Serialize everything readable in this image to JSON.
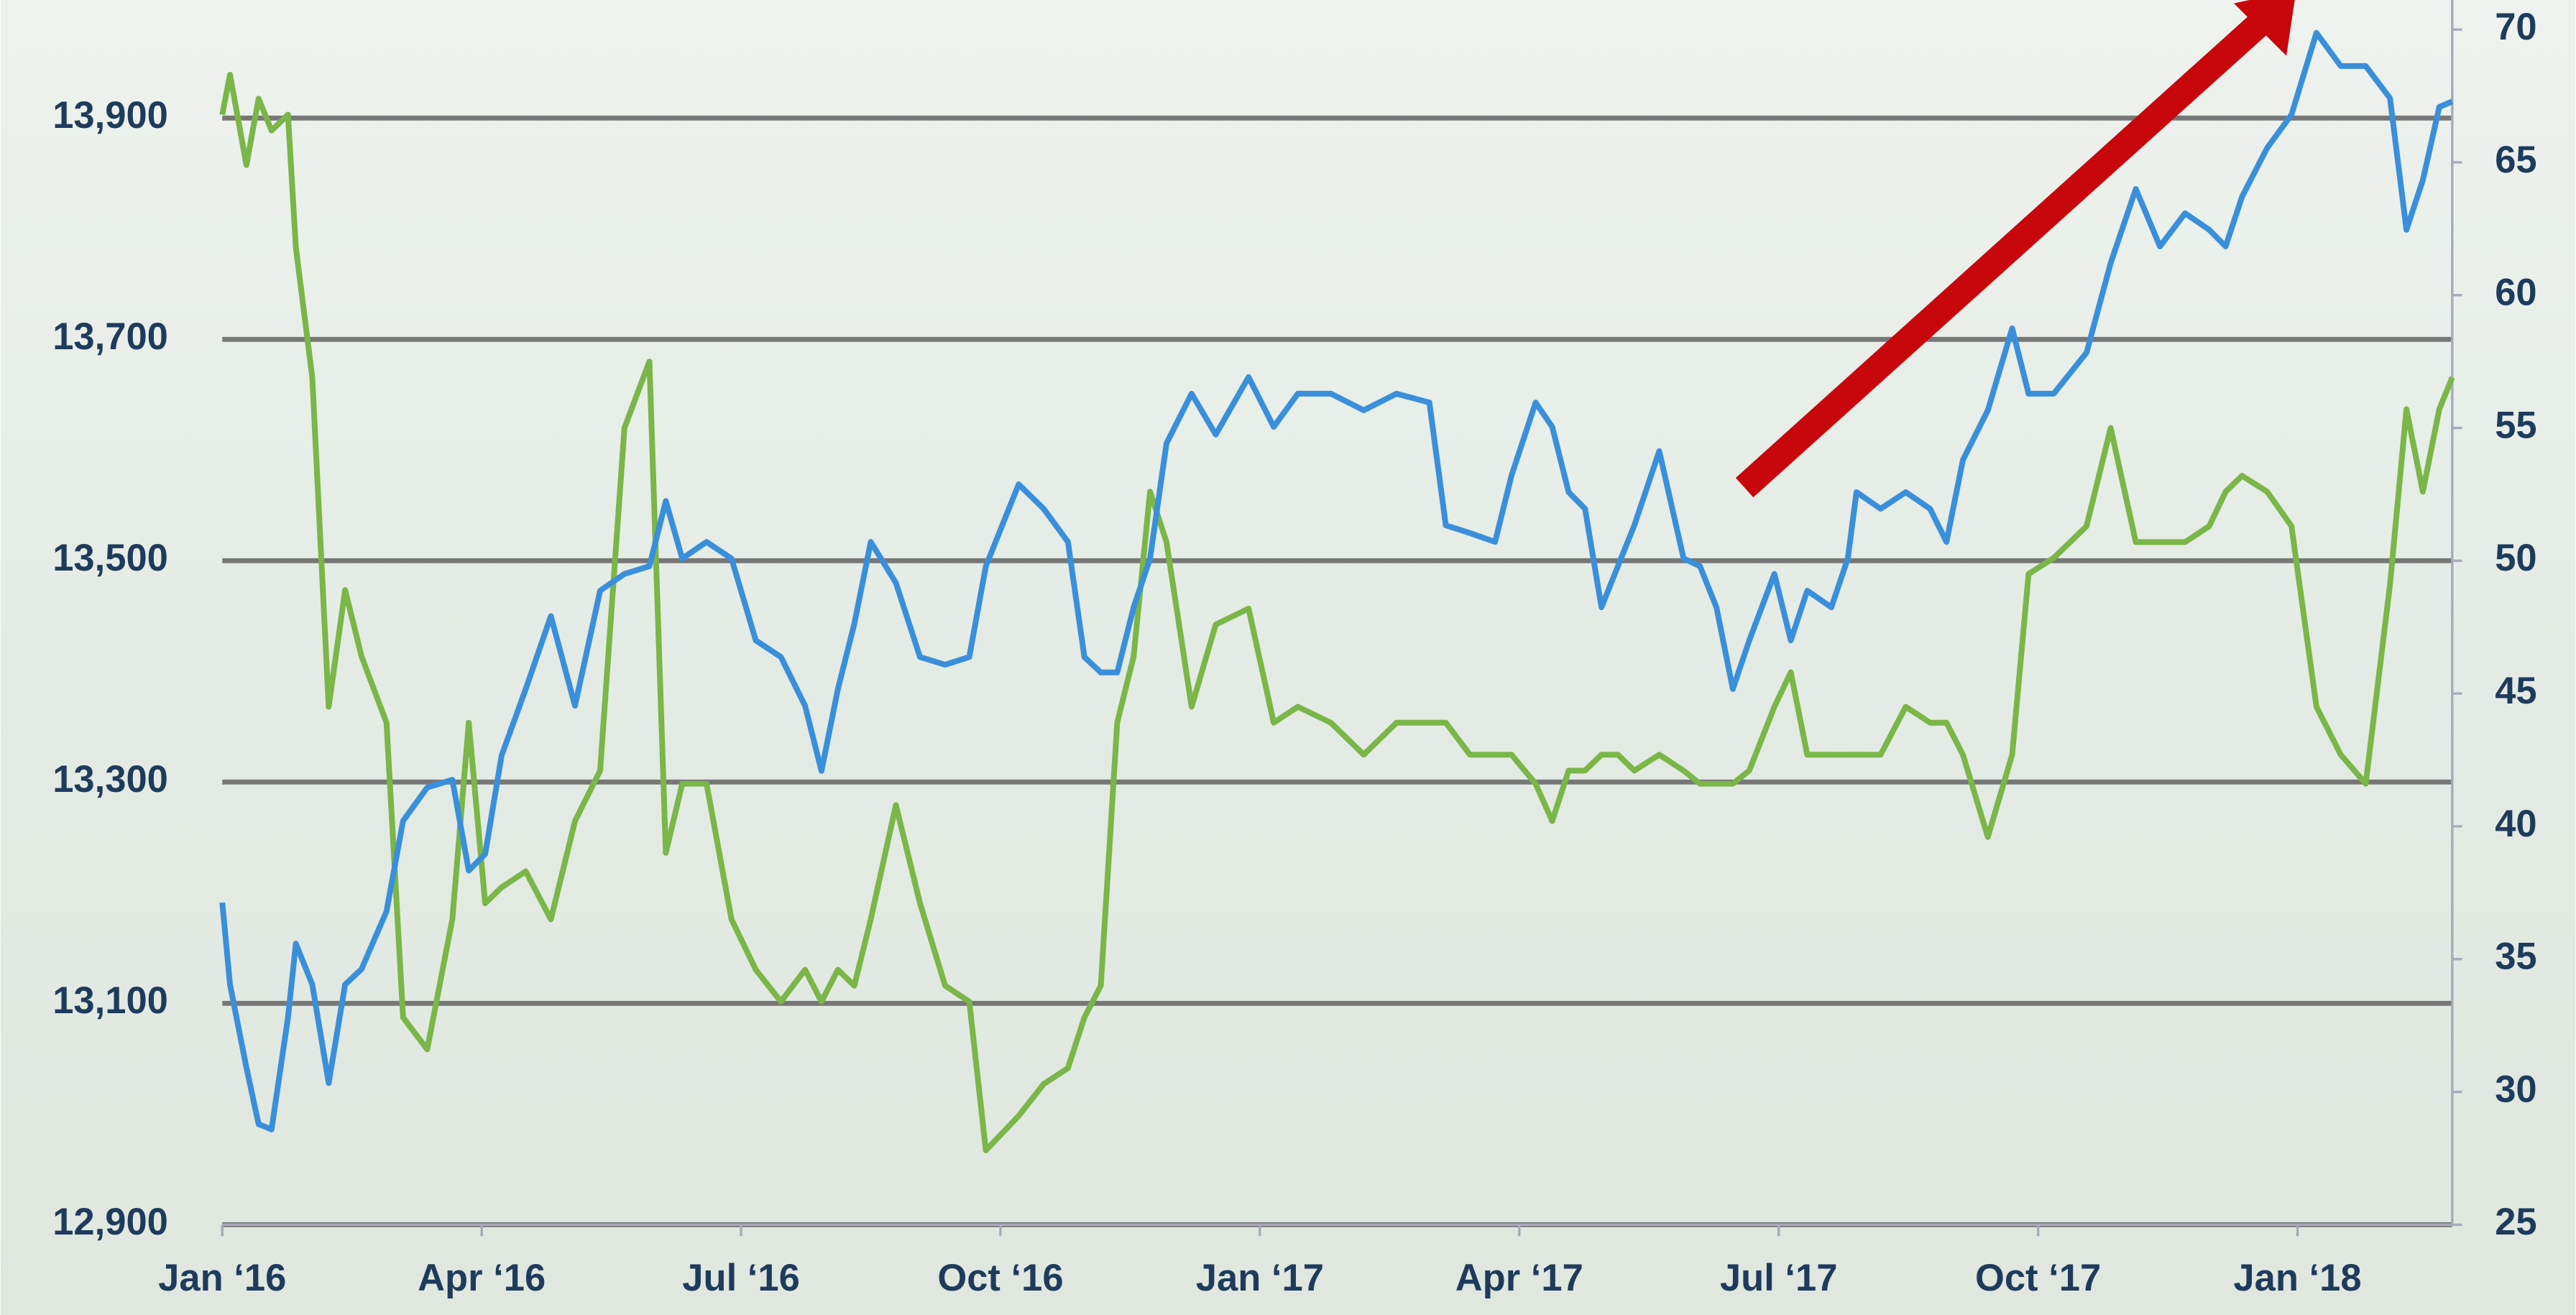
{
  "chart_data": {
    "type": "line",
    "x": [
      0,
      0.09,
      0.28,
      0.42,
      0.57,
      0.76,
      0.85,
      1.04,
      1.23,
      1.42,
      1.61,
      1.9,
      2.09,
      2.37,
      2.66,
      2.85,
      3.04,
      3.23,
      3.51,
      3.8,
      4.08,
      4.37,
      4.65,
      4.94,
      5.13,
      5.32,
      5.6,
      5.89,
      6.17,
      6.46,
      6.74,
      6.93,
      7.12,
      7.31,
      7.5,
      7.79,
      8.07,
      8.36,
      8.64,
      8.83,
      9.21,
      9.5,
      9.78,
      9.97,
      10.16,
      10.35,
      10.54,
      10.73,
      10.92,
      11.21,
      11.49,
      11.87,
      12.16,
      12.44,
      12.82,
      13.2,
      13.58,
      13.96,
      14.15,
      14.43,
      14.72,
      14.91,
      15.19,
      15.38,
      15.57,
      15.76,
      15.95,
      16.14,
      16.33,
      16.62,
      16.9,
      17.09,
      17.28,
      17.47,
      17.66,
      17.95,
      18.14,
      18.33,
      18.61,
      18.8,
      18.9,
      19.18,
      19.47,
      19.75,
      19.94,
      20.13,
      20.42,
      20.7,
      20.89,
      21.18,
      21.56,
      21.84,
      22.13,
      22.41,
      22.7,
      22.98,
      23.17,
      23.36,
      23.65,
      23.93,
      24.22,
      24.5,
      24.79,
      25.07,
      25.26,
      25.45,
      25.64,
      25.79
    ],
    "xlim": [
      0,
      25.79
    ],
    "xticks": [
      {
        "value": 0,
        "label": "Jan ‘16"
      },
      {
        "value": 3,
        "label": "Apr ‘16"
      },
      {
        "value": 6,
        "label": "Jul ‘16"
      },
      {
        "value": 9,
        "label": "Oct ‘16"
      },
      {
        "value": 12,
        "label": "Jan ‘17"
      },
      {
        "value": 15,
        "label": "Apr ‘17"
      },
      {
        "value": 18,
        "label": "Jul ‘17"
      },
      {
        "value": 21,
        "label": "Oct ‘17"
      },
      {
        "value": 24,
        "label": "Jan ‘18"
      }
    ],
    "ylim": [
      12900,
      13980
    ],
    "yticks": [
      {
        "value": 12900,
        "label": "12,900"
      },
      {
        "value": 13100,
        "label": "13,100"
      },
      {
        "value": 13300,
        "label": "13,300"
      },
      {
        "value": 13500,
        "label": "13,500"
      },
      {
        "value": 13700,
        "label": "13,700"
      },
      {
        "value": 13900,
        "label": "13,900"
      }
    ],
    "y2lim": [
      25,
      70
    ],
    "y2ticks": [
      25,
      30,
      35,
      40,
      45,
      50,
      55,
      60,
      65,
      70
    ],
    "grid": true,
    "series": [
      {
        "color": "#3a8fdb",
        "values": [
          13191,
          13117,
          13042,
          12991,
          12986,
          13087,
          13154,
          13117,
          13028,
          13117,
          13131,
          13183,
          13265,
          13295,
          13302,
          13220,
          13235,
          13324,
          13384,
          13450,
          13369,
          13473,
          13488,
          13495,
          13554,
          13502,
          13517,
          13502,
          13428,
          13413,
          13369,
          13310,
          13384,
          13443,
          13517,
          13480,
          13413,
          13406,
          13413,
          13495,
          13569,
          13547,
          13517,
          13413,
          13399,
          13399,
          13458,
          13502,
          13606,
          13651,
          13614,
          13666,
          13621,
          13651,
          13651,
          13636,
          13651,
          13643,
          13532,
          13525,
          13517,
          13577,
          13643,
          13621,
          13562,
          13547,
          13458,
          13495,
          13532,
          13599,
          13502,
          13495,
          13458,
          13384,
          13428,
          13488,
          13428,
          13473,
          13458,
          13502,
          13562,
          13547,
          13562,
          13547,
          13517,
          13591,
          13636,
          13710,
          13651,
          13651,
          13688,
          13769,
          13836,
          13784,
          13814,
          13799,
          13784,
          13829,
          13873,
          13903,
          13977,
          13947,
          13947,
          13918,
          13799,
          13844,
          13910,
          13915
        ]
      },
      {
        "color": "#7ab648",
        "axis": "y2",
        "values": [
          66.8,
          68.3,
          64.9,
          67.4,
          66.2,
          66.8,
          61.8,
          56.9,
          44.5,
          48.9,
          46.4,
          43.9,
          32.8,
          31.6,
          36.5,
          43.9,
          37.1,
          37.7,
          38.3,
          36.5,
          40.2,
          42.1,
          55,
          57.5,
          39,
          41.6,
          41.6,
          36.5,
          34.6,
          33.4,
          34.6,
          33.4,
          34.6,
          34,
          36.5,
          40.8,
          37.1,
          34,
          33.4,
          27.8,
          29.1,
          30.3,
          30.9,
          32.8,
          34,
          43.9,
          46.4,
          52.6,
          50.7,
          44.5,
          47.6,
          48.2,
          43.9,
          44.5,
          43.9,
          42.7,
          43.9,
          43.9,
          43.9,
          42.7,
          42.7,
          42.7,
          41.6,
          40.2,
          42.1,
          42.1,
          42.7,
          42.7,
          42.1,
          42.7,
          42.1,
          41.6,
          41.6,
          41.6,
          42.1,
          44.5,
          45.8,
          42.7,
          42.7,
          42.7,
          42.7,
          42.7,
          44.5,
          43.9,
          43.9,
          42.7,
          39.6,
          42.7,
          49.5,
          50.1,
          51.3,
          55,
          50.7,
          50.7,
          50.7,
          51.3,
          52.6,
          53.2,
          52.6,
          51.3,
          44.5,
          42.7,
          41.6,
          49.1,
          55.7,
          52.6,
          55.7,
          56.9
        ]
      }
    ]
  }
}
